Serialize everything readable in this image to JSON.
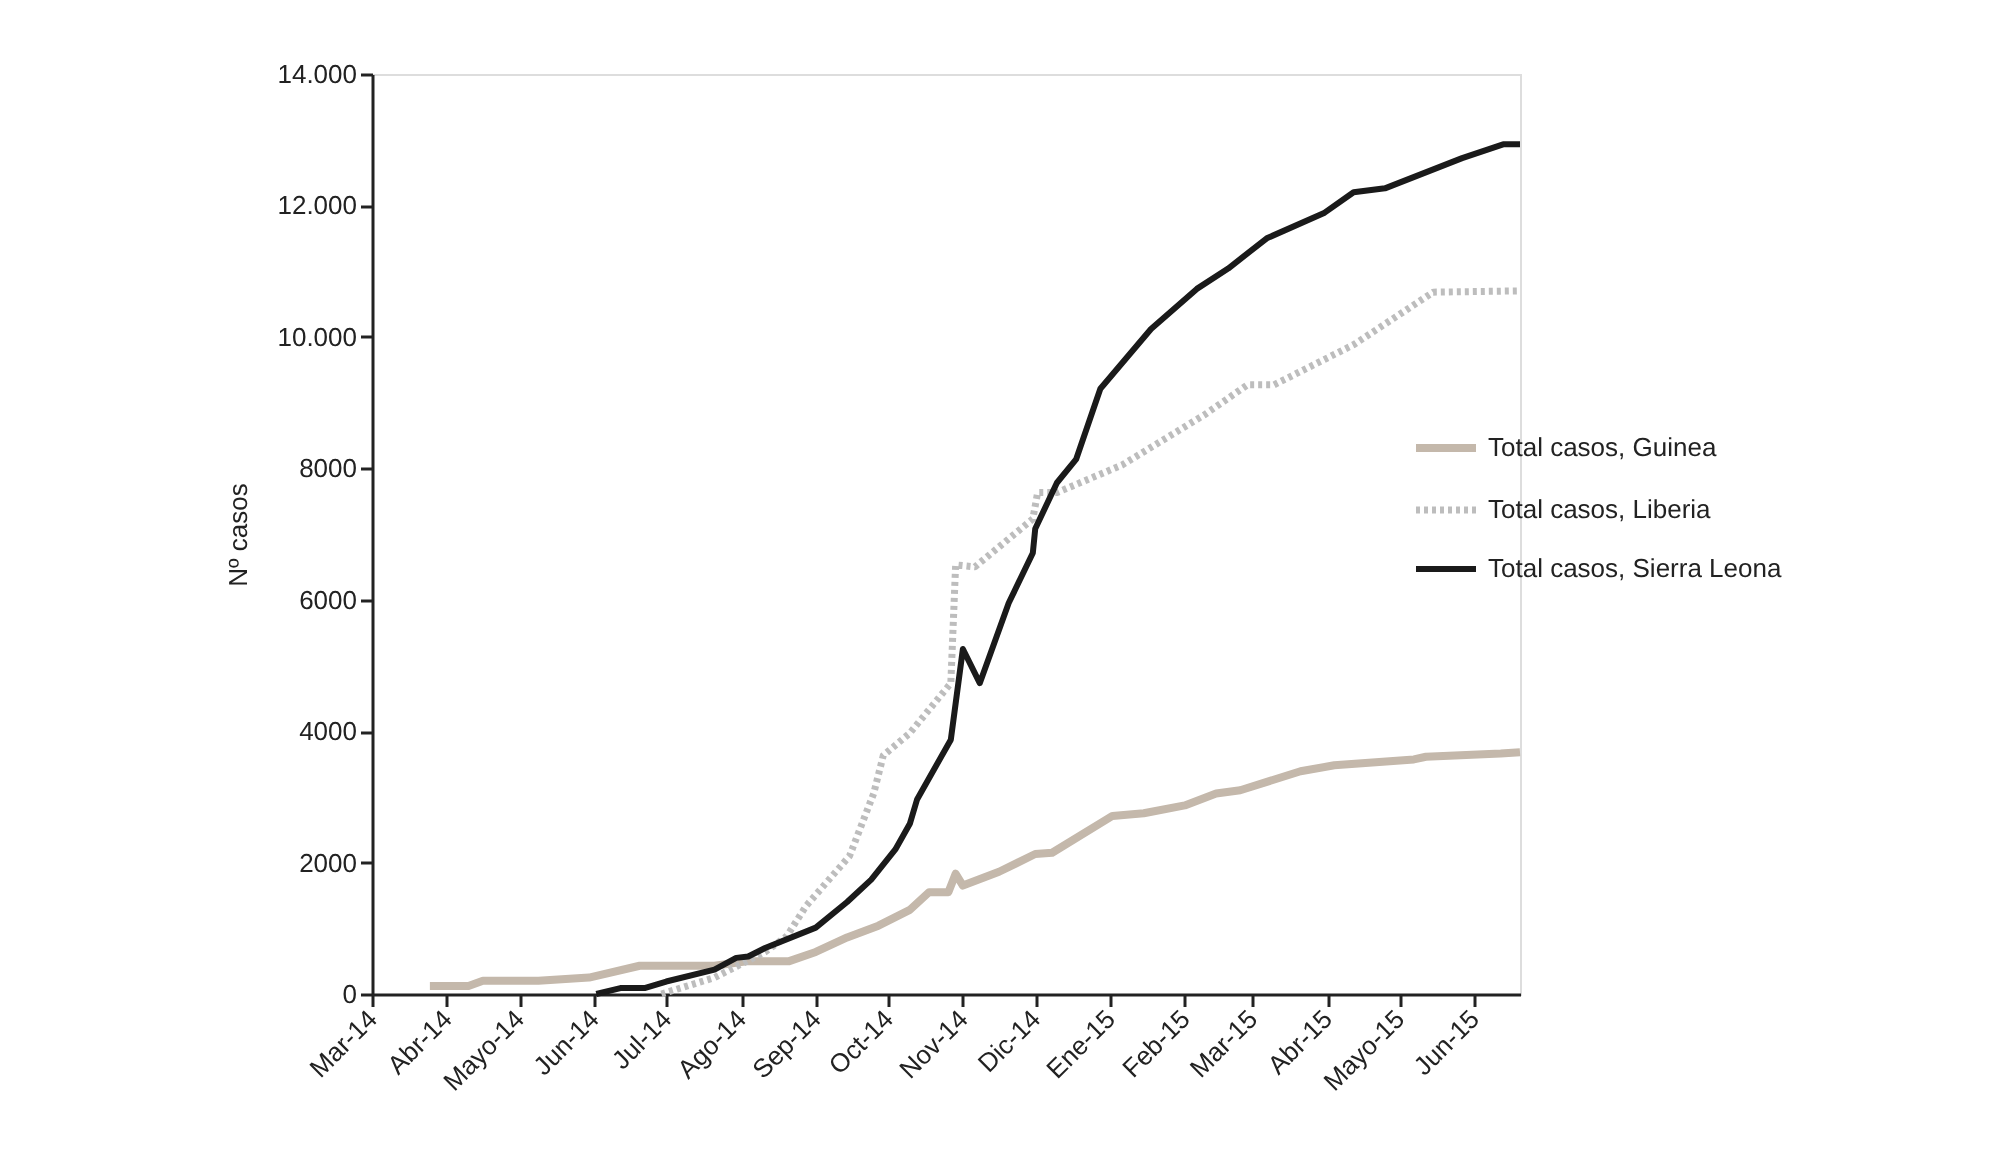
{
  "chart_data": {
    "type": "line",
    "ylabel": "Nº casos",
    "ylim": [
      0,
      14000
    ],
    "yticks": [
      0,
      2000,
      4000,
      6000,
      8000,
      {
        "value": 10000,
        "label": "10.000"
      },
      {
        "value": 12000,
        "label": "12.000"
      },
      {
        "value": 14000,
        "label": "14.000"
      }
    ],
    "xlim": [
      "2014-03-01",
      "2015-06-20"
    ],
    "xticks": [
      {
        "value": "2014-03",
        "label": "Mar-14"
      },
      {
        "value": "2014-04",
        "label": "Abr-14"
      },
      {
        "value": "2014-05",
        "label": "Mayo-14"
      },
      {
        "value": "2014-06",
        "label": "Jun-14"
      },
      {
        "value": "2014-07",
        "label": "Jul-14"
      },
      {
        "value": "2014-08",
        "label": "Ago-14"
      },
      {
        "value": "2014-09",
        "label": "Sep-14"
      },
      {
        "value": "2014-10",
        "label": "Oct-14"
      },
      {
        "value": "2014-11",
        "label": "Nov-14"
      },
      {
        "value": "2014-12",
        "label": "Dic-14"
      },
      {
        "value": "2015-01",
        "label": "Ene-15"
      },
      {
        "value": "2015-02",
        "label": "Feb-15"
      },
      {
        "value": "2015-03",
        "label": "Mar-15"
      },
      {
        "value": "2015-04",
        "label": "Abr-15"
      },
      {
        "value": "2015-05",
        "label": "Mayo-15"
      },
      {
        "value": "2015-06",
        "label": "Jun-15"
      }
    ],
    "grid": false,
    "legend": "right",
    "marker": "none",
    "series": [
      {
        "name": "Total casos, Guinea",
        "color": "#c4b8ab",
        "line_style": "solid",
        "x": [
          "2014-03-25",
          "2014-04-10",
          "2014-04-16",
          "2014-05-09",
          "2014-05-30",
          "2014-06-20",
          "2014-07-21",
          "2014-08-04",
          "2014-08-21",
          "2014-09-01",
          "2014-09-14",
          "2014-09-27",
          "2014-10-10",
          "2014-10-18",
          "2014-10-26",
          "2014-10-29",
          "2014-11-01",
          "2014-11-16",
          "2014-12-01",
          "2014-12-08",
          "2015-01-02",
          "2015-01-15",
          "2015-02-01",
          "2015-02-14",
          "2015-02-24",
          "2015-03-21",
          "2015-04-04",
          "2015-05-07",
          "2015-05-12",
          "2015-06-12",
          "2015-06-20"
        ],
        "values": [
          120,
          120,
          200,
          200,
          250,
          430,
          430,
          500,
          500,
          640,
          860,
          1040,
          1280,
          1550,
          1550,
          1830,
          1650,
          1860,
          2130,
          2150,
          2710,
          2750,
          2870,
          3050,
          3100,
          3390,
          3480,
          3570,
          3610,
          3660,
          3680
        ]
      },
      {
        "name": "Total casos, Liberia",
        "color": "#bdbdbd",
        "line_style": "dotted",
        "x": [
          "2014-06-29",
          "2014-07-21",
          "2014-08-11",
          "2014-08-20",
          "2014-08-28",
          "2014-09-15",
          "2014-09-25",
          "2014-09-29",
          "2014-10-10",
          "2014-10-27",
          "2014-10-29",
          "2014-11-06",
          "2014-11-30",
          "2014-12-02",
          "2014-12-10",
          "2015-01-06",
          "2015-02-09",
          "2015-02-27",
          "2015-03-10",
          "2015-04-12",
          "2015-05-01",
          "2015-05-15",
          "2015-06-20"
        ],
        "values": [
          0,
          250,
          640,
          880,
          1340,
          2100,
          3050,
          3630,
          3970,
          4730,
          6530,
          6500,
          7230,
          7630,
          7630,
          8050,
          8810,
          9270,
          9270,
          9880,
          10340,
          10680,
          10700
        ]
      },
      {
        "name": "Total casos, Sierra Leona",
        "color": "#1a1a1a",
        "line_style": "solid",
        "x": [
          "2014-06-02",
          "2014-06-12",
          "2014-06-22",
          "2014-07-01",
          "2014-07-21",
          "2014-07-30",
          "2014-08-04",
          "2014-08-11",
          "2014-09-01",
          "2014-09-14",
          "2014-09-24",
          "2014-10-04",
          "2014-10-10",
          "2014-10-13",
          "2014-10-27",
          "2014-11-01",
          "2014-11-08",
          "2014-11-20",
          "2014-11-30",
          "2014-12-01",
          "2014-12-10",
          "2014-12-18",
          "2014-12-28",
          "2015-01-18",
          "2015-02-06",
          "2015-02-19",
          "2015-03-07",
          "2015-03-31",
          "2015-04-12",
          "2015-04-25",
          "2015-05-27",
          "2015-06-13",
          "2015-06-20"
        ],
        "values": [
          0,
          90,
          90,
          190,
          370,
          550,
          570,
          700,
          1010,
          1400,
          1740,
          2200,
          2590,
          2960,
          3870,
          5250,
          4730,
          5950,
          6710,
          7080,
          7780,
          8140,
          9210,
          10120,
          10730,
          11040,
          11500,
          11890,
          12200,
          12260,
          12720,
          12930,
          12930
        ]
      }
    ]
  }
}
